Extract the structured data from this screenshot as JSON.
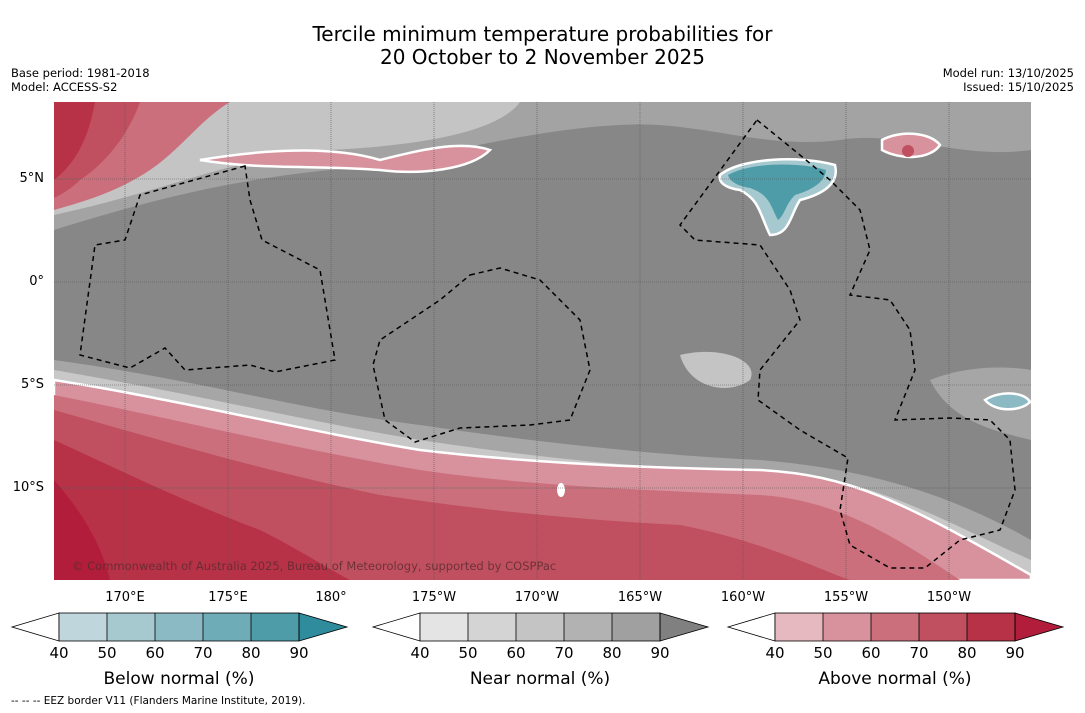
{
  "header": {
    "title_line1": "Tercile minimum temperature probabilities for",
    "title_line2": "20 October to 2 November 2025",
    "base_period": "Base period: 1981-2018",
    "model": "Model: ACCESS-S2",
    "model_run": "Model run: 13/10/2025",
    "issued": "Issued: 15/10/2025"
  },
  "map": {
    "lat_labels": [
      "5°N",
      "0°",
      "5°S",
      "10°S"
    ],
    "lon_labels": [
      "170°E",
      "175°E",
      "180°",
      "175°W",
      "170°W",
      "165°W",
      "160°W",
      "155°W",
      "150°W"
    ],
    "copyright": "© Commonwealth of Australia 2025, Bureau of Meteorology, supported by COSPPac",
    "colors": {
      "background_near": "#868686",
      "above": "#c9505d",
      "above_strong": "#b7263f",
      "below": "#3597a6"
    }
  },
  "colorbars": [
    {
      "label": "Below normal (%)",
      "ticks": [
        "40",
        "50",
        "60",
        "70",
        "80",
        "90"
      ],
      "colors": [
        "#bfd6dc",
        "#a6c9d0",
        "#8bbac4",
        "#6eacb7",
        "#4f9ca9",
        "#2f8c9c"
      ]
    },
    {
      "label": "Near normal (%)",
      "ticks": [
        "40",
        "50",
        "60",
        "70",
        "80",
        "90"
      ],
      "colors": [
        "#e4e4e4",
        "#d4d4d4",
        "#c4c4c4",
        "#b2b2b2",
        "#a0a0a0",
        "#808080"
      ]
    },
    {
      "label": "Above normal (%)",
      "ticks": [
        "40",
        "50",
        "60",
        "70",
        "80",
        "90"
      ],
      "colors": [
        "#e6b8bf",
        "#d8929d",
        "#cb6f7d",
        "#c0505f",
        "#b73247",
        "#b11d3a"
      ]
    }
  ],
  "footnote": "--  --  -- EEZ border V11 (Flanders Marine Institute, 2019)."
}
